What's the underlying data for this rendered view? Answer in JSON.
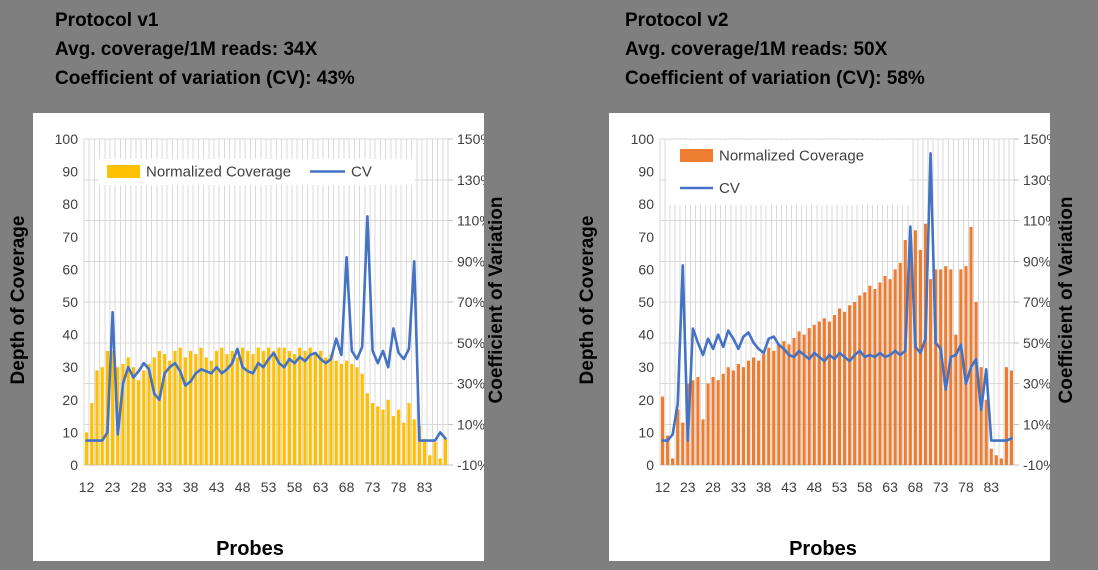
{
  "page": {
    "background_color": "#7F7F7F",
    "card_color": "#FFFFFF",
    "gridline_color": "#D9D9D9",
    "axis_line_color": "#BFBFBF",
    "tick_label_color": "#404040",
    "title_color": "#000000"
  },
  "panels": [
    {
      "title": "Protocol v1",
      "avg_coverage_line": "Avg. coverage/1M reads: 34X",
      "cv_line": "Coefficient of variation (CV): 43%"
    },
    {
      "title": "Protocol v2",
      "avg_coverage_line": "Avg. coverage/1M reads: 50X",
      "cv_line": "Coefficient of variation (CV): 58%"
    }
  ],
  "chart_data": [
    {
      "type": "bar+line combo, dual y-axes",
      "title": "Protocol v1",
      "x_axis_label": "Probes",
      "y_left_label": "Depth of Coverage",
      "y_right_label": "Coefficient of Variation",
      "y_left_range": [
        0,
        100
      ],
      "y_left_ticks": [
        0,
        10,
        20,
        30,
        40,
        50,
        60,
        70,
        80,
        90,
        100
      ],
      "y_right_range_pct": [
        -10,
        150
      ],
      "y_right_ticks_pct": [
        -10,
        10,
        30,
        50,
        70,
        90,
        110,
        130,
        150
      ],
      "x_tick_labels": [
        "12",
        "23",
        "28",
        "33",
        "38",
        "43",
        "48",
        "53",
        "58",
        "63",
        "68",
        "73",
        "78",
        "83"
      ],
      "x_tick_every": 5,
      "n_categories": 70,
      "grid": "vertical line per category, horizontal lines at right-axis ticks",
      "legend_position": "top-inside-horizontal",
      "series": [
        {
          "name": "Normalized Coverage",
          "type": "bar",
          "axis": "left",
          "color": "#FFC000",
          "values": [
            10,
            19,
            29,
            30,
            35,
            35,
            30,
            31,
            33,
            30,
            26,
            29,
            31,
            33,
            35,
            34,
            32,
            35,
            36,
            33,
            35,
            34,
            36,
            33,
            32,
            35,
            36,
            34,
            35,
            33,
            36,
            35,
            34,
            36,
            35,
            36,
            35,
            36,
            36,
            35,
            34,
            36,
            35,
            36,
            34,
            35,
            33,
            34,
            32,
            31,
            32,
            31,
            30,
            28,
            22,
            19,
            18,
            17,
            20,
            15,
            17,
            13,
            19,
            14,
            12,
            8,
            3,
            7,
            2,
            8
          ]
        },
        {
          "name": "CV",
          "type": "line",
          "axis": "right",
          "unit": "%",
          "color": "#4472C4",
          "values": [
            2,
            2,
            2,
            2,
            6,
            65,
            5,
            30,
            38,
            33,
            36,
            40,
            37,
            25,
            22,
            35,
            38,
            40,
            36,
            29,
            31,
            35,
            37,
            36,
            35,
            38,
            35,
            37,
            40,
            47,
            38,
            36,
            35,
            40,
            38,
            42,
            45,
            40,
            38,
            42,
            40,
            43,
            41,
            44,
            45,
            42,
            40,
            42,
            52,
            44,
            92,
            46,
            42,
            48,
            112,
            46,
            40,
            46,
            38,
            57,
            45,
            42,
            47,
            90,
            2,
            2,
            2,
            2,
            6,
            3
          ]
        }
      ]
    },
    {
      "type": "bar+line combo, dual y-axes",
      "title": "Protocol v2",
      "x_axis_label": "Probes",
      "y_left_label": "Depth of Coverage",
      "y_right_label": "Coefficient of Variation",
      "y_left_range": [
        0,
        100
      ],
      "y_left_ticks": [
        0,
        10,
        20,
        30,
        40,
        50,
        60,
        70,
        80,
        90,
        100
      ],
      "y_right_range_pct": [
        -10,
        150
      ],
      "y_right_ticks_pct": [
        -10,
        10,
        30,
        50,
        70,
        90,
        110,
        130,
        150
      ],
      "x_tick_labels": [
        "12",
        "23",
        "28",
        "33",
        "38",
        "43",
        "48",
        "53",
        "58",
        "63",
        "68",
        "73",
        "78",
        "83"
      ],
      "x_tick_every": 5,
      "n_categories": 70,
      "grid": "vertical line per category, horizontal lines at right-axis ticks",
      "legend_position": "top-inside-stacked",
      "series": [
        {
          "name": "Normalized Coverage",
          "type": "bar",
          "axis": "left",
          "color": "#ED7D31",
          "values": [
            21,
            9,
            2,
            17,
            13,
            25,
            26,
            27,
            14,
            25,
            27,
            26,
            28,
            30,
            29,
            31,
            30,
            32,
            33,
            32,
            34,
            36,
            35,
            37,
            38,
            37,
            39,
            41,
            40,
            42,
            43,
            44,
            45,
            44,
            46,
            48,
            47,
            49,
            50,
            52,
            53,
            55,
            54,
            56,
            58,
            57,
            60,
            62,
            69,
            64,
            72,
            66,
            74,
            57,
            60,
            60,
            61,
            60,
            40,
            60,
            61,
            73,
            50,
            30,
            20,
            5,
            3,
            2,
            30,
            29
          ]
        },
        {
          "name": "CV",
          "type": "line",
          "axis": "right",
          "unit": "%",
          "color": "#4472C4",
          "values": [
            2,
            2,
            5,
            20,
            88,
            2,
            57,
            50,
            44,
            52,
            47,
            54,
            48,
            56,
            52,
            47,
            53,
            55,
            50,
            47,
            45,
            52,
            53,
            49,
            47,
            44,
            43,
            46,
            44,
            42,
            45,
            43,
            41,
            44,
            42,
            45,
            43,
            41,
            44,
            46,
            43,
            44,
            43,
            45,
            43,
            44,
            46,
            44,
            46,
            107,
            48,
            45,
            52,
            143,
            50,
            47,
            27,
            43,
            44,
            49,
            30,
            38,
            42,
            17,
            37,
            2,
            2,
            2,
            2,
            3
          ]
        }
      ]
    }
  ]
}
